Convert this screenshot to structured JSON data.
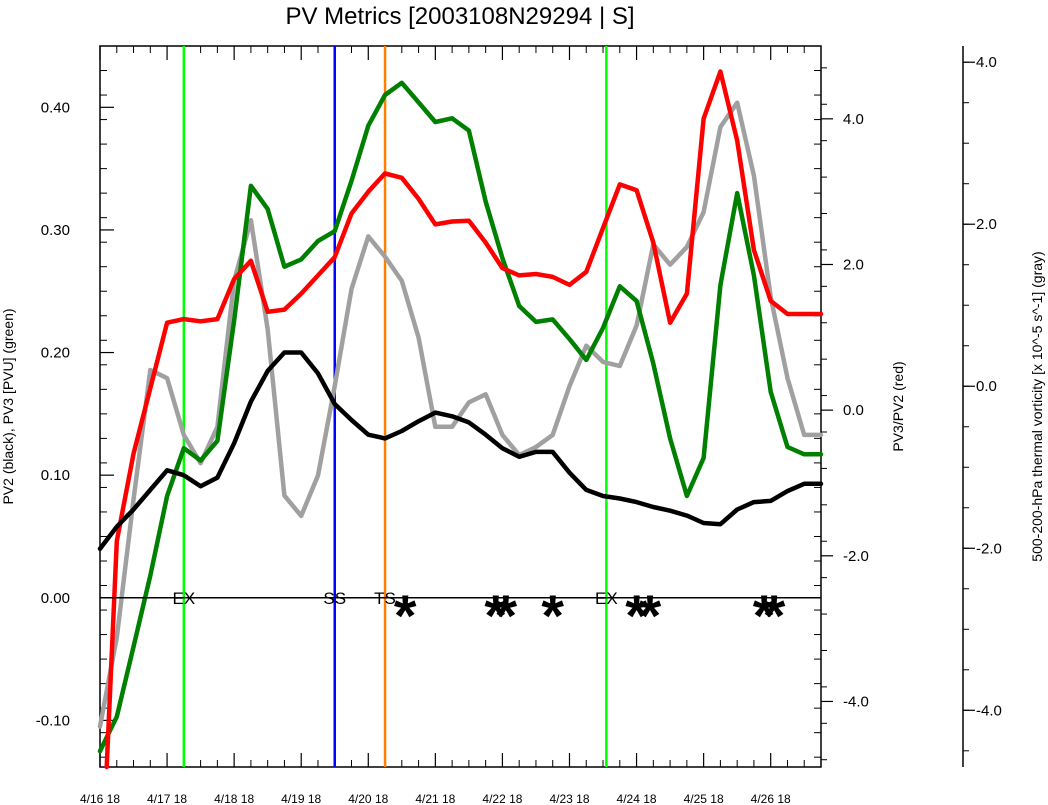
{
  "chart_data": {
    "type": "line",
    "title": "PV Metrics [2003108N29294 | S]",
    "x": {
      "tick_labels": [
        "4/16 18",
        "4/17 18",
        "4/18 18",
        "4/19 18",
        "4/20 18",
        "4/21 18",
        "4/22 18",
        "4/23 18",
        "4/24 18",
        "4/25 18",
        "4/26 18"
      ],
      "tick_days": [
        0,
        1,
        2,
        3,
        4,
        5,
        6,
        7,
        8,
        9,
        10
      ],
      "xlim_days": [
        0,
        10.75
      ],
      "unit": "days after 4/16 18"
    },
    "y_left": {
      "label": "PV2 (black), PV3 [PVU] (green)",
      "ylim": [
        -0.138,
        0.45
      ],
      "ticks": [
        -0.1,
        0.0,
        0.1,
        0.2,
        0.3,
        0.4
      ],
      "tick_labels": [
        "-0.10",
        "0.00",
        "0.10",
        "0.20",
        "0.30",
        "0.40"
      ]
    },
    "y_right": {
      "label": "PV3/PV2 (red)",
      "ylim": [
        -4.9,
        5.0
      ],
      "ticks": [
        -4.0,
        -2.0,
        0.0,
        2.0,
        4.0
      ],
      "tick_labels": [
        "-4.0",
        "-2.0",
        "0.0",
        "2.0",
        "4.0"
      ]
    },
    "y_far_right": {
      "label": "500-200-hPa thermal vorticity [x 10^-5 s^-1] (gray)",
      "ylim": [
        -4.7,
        4.2
      ],
      "ticks": [
        -4.0,
        -2.0,
        0.0,
        2.0,
        4.0
      ],
      "tick_labels": [
        "-4.0",
        "-2.0",
        "0.0",
        "2.0",
        "4.0"
      ]
    },
    "zero_line": 0.0,
    "series": [
      {
        "name": "PV2",
        "color": "#000000",
        "axis": "left",
        "x": [
          0,
          0.25,
          0.5,
          0.75,
          1,
          1.25,
          1.5,
          1.75,
          2,
          2.25,
          2.5,
          2.75,
          3,
          3.25,
          3.5,
          3.75,
          4,
          4.25,
          4.5,
          4.75,
          5,
          5.25,
          5.5,
          5.75,
          6,
          6.25,
          6.5,
          6.75,
          7,
          7.25,
          7.5,
          7.75,
          8,
          8.25,
          8.5,
          8.75,
          9,
          9.25,
          9.5,
          9.75,
          10,
          10.25,
          10.5,
          10.75
        ],
        "values": [
          0.04,
          0.058,
          0.072,
          0.088,
          0.104,
          0.1,
          0.091,
          0.098,
          0.126,
          0.16,
          0.185,
          0.2,
          0.2,
          0.183,
          0.158,
          0.145,
          0.133,
          0.13,
          0.136,
          0.144,
          0.151,
          0.148,
          0.143,
          0.133,
          0.122,
          0.115,
          0.119,
          0.119,
          0.102,
          0.088,
          0.083,
          0.081,
          0.078,
          0.074,
          0.071,
          0.067,
          0.061,
          0.06,
          0.072,
          0.078,
          0.079,
          0.087,
          0.093,
          0.093
        ]
      },
      {
        "name": "PV3",
        "color": "#008000",
        "axis": "left",
        "x": [
          0,
          0.25,
          0.5,
          0.75,
          1,
          1.25,
          1.5,
          1.75,
          2,
          2.25,
          2.5,
          2.75,
          3,
          3.25,
          3.5,
          3.75,
          4,
          4.25,
          4.5,
          4.75,
          5,
          5.25,
          5.5,
          5.75,
          6,
          6.25,
          6.5,
          6.75,
          7,
          7.25,
          7.5,
          7.75,
          8,
          8.25,
          8.5,
          8.75,
          9,
          9.25,
          9.5,
          9.75,
          10,
          10.25,
          10.5,
          10.75
        ],
        "values": [
          -0.125,
          -0.097,
          -0.04,
          0.018,
          0.083,
          0.122,
          0.112,
          0.128,
          0.226,
          0.336,
          0.317,
          0.27,
          0.276,
          0.291,
          0.299,
          0.34,
          0.385,
          0.41,
          0.42,
          0.404,
          0.388,
          0.391,
          0.381,
          0.323,
          0.277,
          0.238,
          0.225,
          0.227,
          0.211,
          0.194,
          0.22,
          0.254,
          0.242,
          0.191,
          0.13,
          0.083,
          0.114,
          0.255,
          0.33,
          0.263,
          0.168,
          0.123,
          0.117,
          0.117
        ]
      },
      {
        "name": "PV3/PV2",
        "color": "#ff0000",
        "axis": "right",
        "x": [
          0.1,
          0.25,
          0.5,
          0.75,
          1,
          1.25,
          1.5,
          1.75,
          2,
          2.25,
          2.5,
          2.75,
          3,
          3.25,
          3.5,
          3.75,
          4,
          4.25,
          4.5,
          4.75,
          5,
          5.25,
          5.5,
          5.75,
          6,
          6.25,
          6.5,
          6.75,
          7,
          7.25,
          7.5,
          7.75,
          8,
          8.25,
          8.5,
          8.75,
          9,
          9.25,
          9.5,
          9.75,
          10,
          10.25,
          10.5,
          10.75
        ],
        "values": [
          -4.9,
          -1.8,
          -0.6,
          0.3,
          1.2,
          1.25,
          1.22,
          1.25,
          1.8,
          2.05,
          1.35,
          1.38,
          1.6,
          1.85,
          2.1,
          2.7,
          3.0,
          3.25,
          3.19,
          2.9,
          2.55,
          2.59,
          2.6,
          2.3,
          1.95,
          1.85,
          1.87,
          1.83,
          1.72,
          1.9,
          2.5,
          3.1,
          3.02,
          2.3,
          1.2,
          1.6,
          4.0,
          4.65,
          3.7,
          2.2,
          1.5,
          1.32,
          1.32,
          1.32
        ]
      },
      {
        "name": "thermal vorticity",
        "color": "#a0a0a0",
        "axis": "far_right",
        "x": [
          0,
          0.25,
          0.5,
          0.75,
          1,
          1.25,
          1.5,
          1.75,
          2,
          2.25,
          2.5,
          2.75,
          3,
          3.25,
          3.5,
          3.75,
          4,
          4.25,
          4.5,
          4.75,
          5,
          5.25,
          5.5,
          5.75,
          6,
          6.25,
          6.5,
          6.75,
          7,
          7.25,
          7.5,
          7.75,
          8,
          8.25,
          8.5,
          8.75,
          9,
          9.25,
          9.5,
          9.75,
          10,
          10.25,
          10.5,
          10.75
        ],
        "values": [
          -4.2,
          -3.1,
          -1.4,
          0.2,
          0.1,
          -0.6,
          -0.95,
          -0.5,
          1.3,
          2.05,
          0.7,
          -1.35,
          -1.6,
          -1.1,
          0.0,
          1.2,
          1.85,
          1.6,
          1.3,
          0.6,
          -0.5,
          -0.5,
          -0.2,
          -0.1,
          -0.6,
          -0.85,
          -0.75,
          -0.6,
          0.0,
          0.5,
          0.3,
          0.25,
          0.75,
          1.75,
          1.5,
          1.72,
          2.15,
          3.2,
          3.5,
          2.6,
          1.1,
          0.1,
          -0.6,
          -0.6
        ]
      }
    ],
    "vertical_lines": [
      {
        "x": 1.25,
        "color": "#00ff00",
        "label": "EX"
      },
      {
        "x": 3.5,
        "color": "#0000ff",
        "label": "SS"
      },
      {
        "x": 4.25,
        "color": "#ff8000",
        "label": "TS"
      },
      {
        "x": 7.55,
        "color": "#00ff00",
        "label": "EX"
      }
    ],
    "stars": [
      4.55,
      5.9,
      6.05,
      6.75,
      8.0,
      8.2,
      9.9,
      10.05
    ],
    "star_symbol": "*",
    "grid": false,
    "legend": "none"
  }
}
